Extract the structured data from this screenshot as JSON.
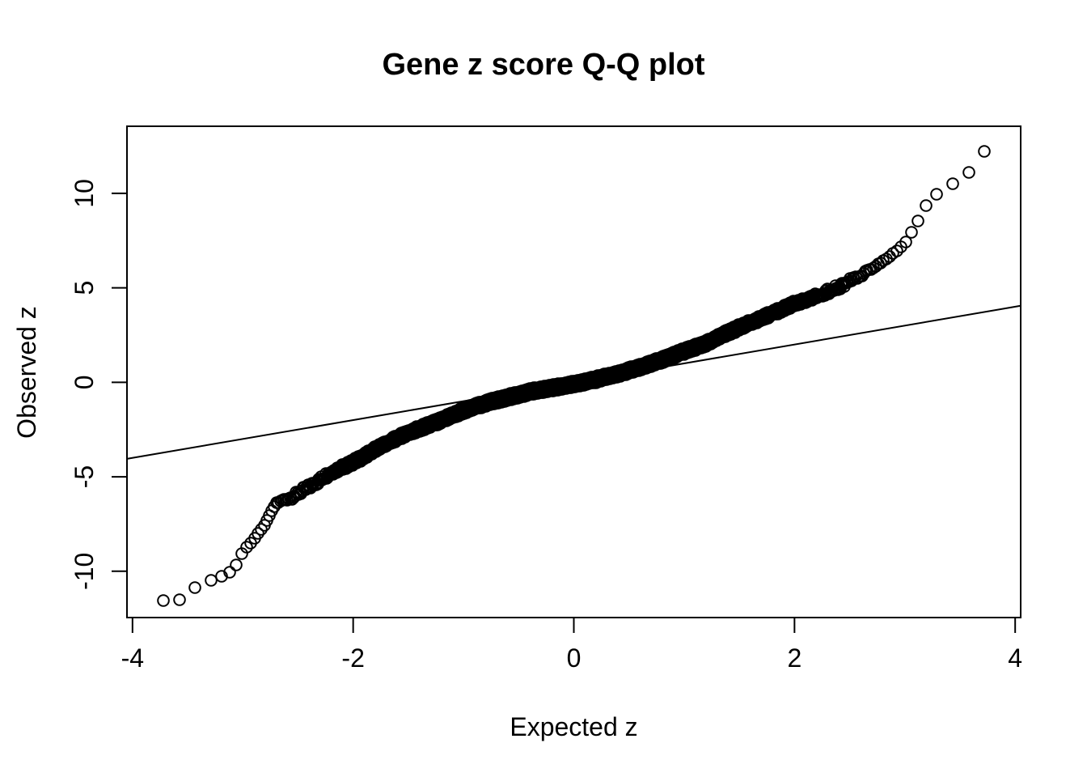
{
  "chart_data": {
    "type": "scatter",
    "title": "Gene z score Q-Q plot",
    "xlabel": "Expected z",
    "ylabel": "Observed z",
    "x_ticks": [
      -4,
      -2,
      0,
      2,
      4
    ],
    "y_ticks": [
      -10,
      -5,
      0,
      5,
      10
    ],
    "xlim": [
      -4.05,
      4.05
    ],
    "ylim": [
      -12.45,
      13.55
    ],
    "grid": false,
    "legend": "none",
    "marker": "open-circle",
    "colors": {
      "points": "#000000",
      "reference_line": "#000000",
      "axis": "#000000",
      "text": "#000000",
      "background": "#ffffff"
    },
    "reference_line": {
      "slope": 1,
      "intercept": 0,
      "style": "solid"
    },
    "n_points": 5000,
    "point_scatter": 0.16,
    "qq_curve_anchors": {
      "expected": [
        -3.75,
        -3.57,
        -3.45,
        -3.3,
        -3.18,
        -3.08,
        -3.0,
        -2.9,
        -2.8,
        -2.7,
        -2.55,
        -2.4,
        -2.2,
        -2.0,
        -1.9,
        -1.8,
        -1.6,
        -1.4,
        -1.2,
        -1.0,
        -0.8,
        -0.6,
        -0.4,
        -0.2,
        0.0,
        0.2,
        0.4,
        0.6,
        0.8,
        1.0,
        1.2,
        1.4,
        1.6,
        1.8,
        2.0,
        2.2,
        2.4,
        2.55,
        2.7,
        2.85,
        3.0,
        3.1,
        3.2,
        3.3,
        3.45,
        3.6,
        3.75
      ],
      "observed": [
        -11.55,
        -11.45,
        -10.9,
        -10.5,
        -10.25,
        -9.9,
        -8.95,
        -8.3,
        -7.5,
        -6.4,
        -6.05,
        -5.55,
        -4.75,
        -4.25,
        -3.9,
        -3.55,
        -2.95,
        -2.45,
        -2.0,
        -1.5,
        -1.1,
        -0.8,
        -0.5,
        -0.3,
        -0.1,
        0.15,
        0.45,
        0.8,
        1.2,
        1.65,
        2.05,
        2.65,
        3.15,
        3.65,
        4.15,
        4.55,
        5.05,
        5.5,
        6.0,
        6.6,
        7.3,
        8.3,
        9.4,
        10.0,
        10.6,
        11.1,
        12.5
      ]
    },
    "extra_points": [
      [
        -3.57,
        -11.5
      ],
      [
        3.58,
        11.1
      ]
    ]
  }
}
